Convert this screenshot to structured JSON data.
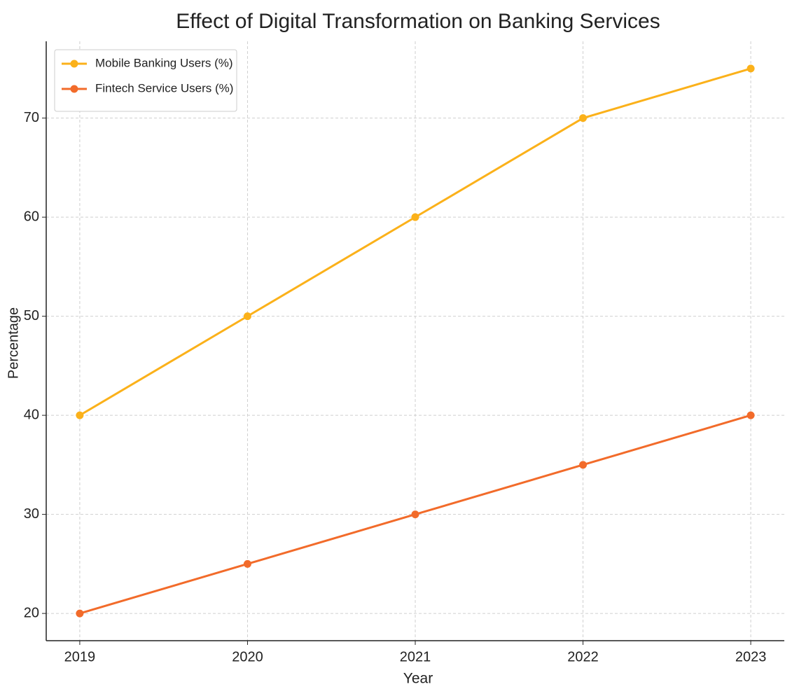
{
  "chart_data": {
    "type": "line",
    "title": "Effect of Digital Transformation on Banking Services",
    "xlabel": "Year",
    "ylabel": "Percentage",
    "x": [
      2019,
      2020,
      2021,
      2022,
      2023
    ],
    "series": [
      {
        "name": "Mobile Banking Users (%)",
        "color": "#fbb11a",
        "values": [
          40,
          50,
          60,
          70,
          75
        ]
      },
      {
        "name": "Fintech Service Users (%)",
        "color": "#f26b2a",
        "values": [
          20,
          25,
          30,
          35,
          40
        ]
      }
    ],
    "xlim": [
      2018.8,
      2023.2
    ],
    "xticks": [
      2019,
      2020,
      2021,
      2022,
      2023
    ],
    "ylim": [
      17.25,
      77.75
    ],
    "yticks": [
      20,
      30,
      40,
      50,
      60,
      70
    ],
    "grid": true,
    "legend": "upper left"
  }
}
